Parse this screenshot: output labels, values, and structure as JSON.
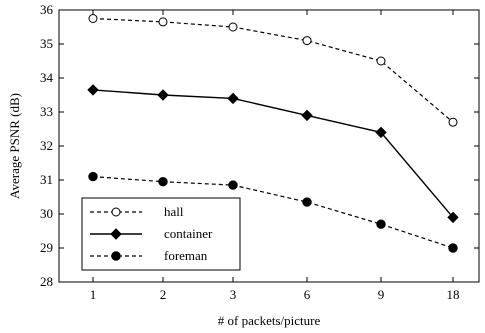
{
  "chart_data": {
    "type": "line",
    "categories": [
      "1",
      "2",
      "3",
      "6",
      "9",
      "18"
    ],
    "xlabel": "# of packets/picture",
    "ylabel": "Average PSNR (dB)",
    "ylim": [
      28,
      36
    ],
    "yticks": [
      28,
      29,
      30,
      31,
      32,
      33,
      34,
      35,
      36
    ],
    "grid": false,
    "legend_position": "bottom-left",
    "series": [
      {
        "name": "hall",
        "values": [
          35.75,
          35.65,
          35.5,
          35.1,
          34.5,
          32.7
        ],
        "line_style": "dashed",
        "marker": "open-circle",
        "color": "#000000"
      },
      {
        "name": "container",
        "values": [
          33.65,
          33.5,
          33.4,
          32.9,
          32.4,
          29.9
        ],
        "line_style": "solid",
        "marker": "filled-diamond",
        "color": "#000000"
      },
      {
        "name": "foreman",
        "values": [
          31.1,
          30.95,
          30.85,
          30.35,
          29.7,
          29.0
        ],
        "line_style": "dashed",
        "marker": "filled-circle",
        "color": "#000000"
      }
    ]
  }
}
